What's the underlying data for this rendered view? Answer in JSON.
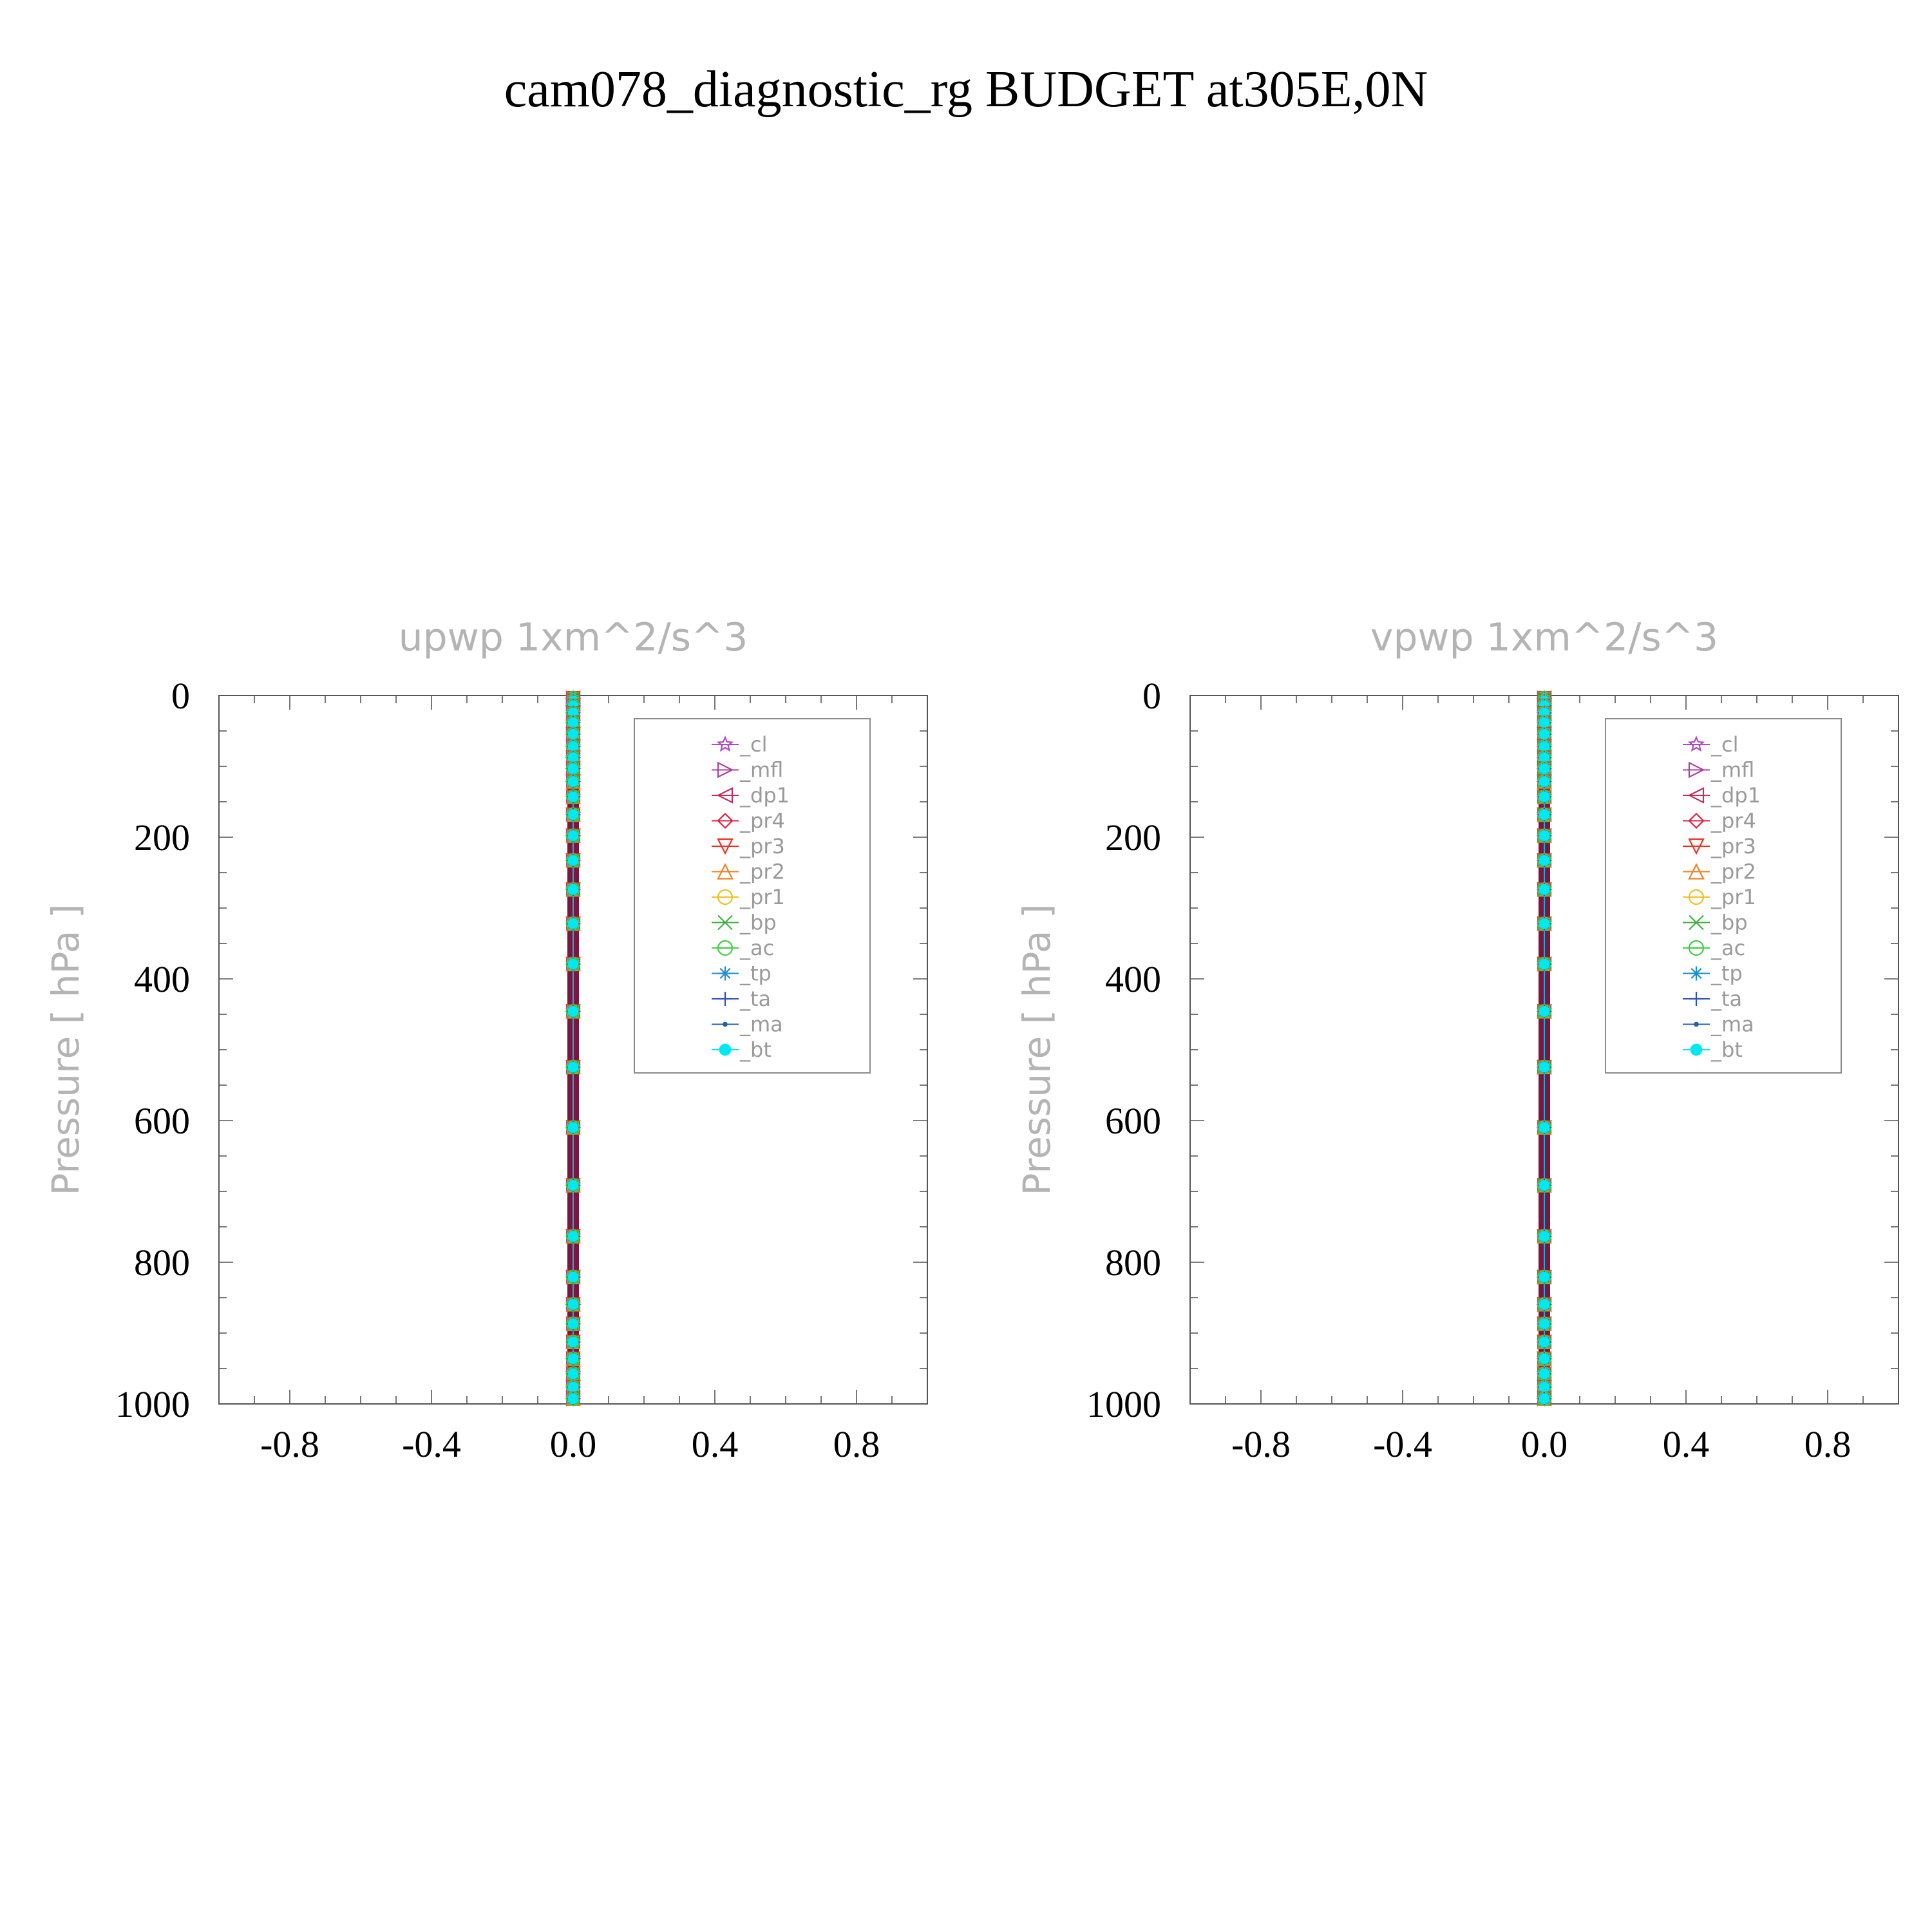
{
  "title": "cam078_diagnostic_rg  BUDGET at305E,0N",
  "chart_data": [
    {
      "type": "line",
      "title": "upwp    1xm^2/s^3",
      "xlabel": "",
      "ylabel": "Pressure  [ hPa ]",
      "xlim": [
        -1.0,
        1.0
      ],
      "ylim": [
        0,
        1000
      ],
      "y_inverted": true,
      "x_ticks": [
        "-0.8",
        "-0.4",
        "0.0",
        "0.4",
        "0.8"
      ],
      "x_tick_values": [
        -0.8,
        -0.4,
        0.0,
        0.4,
        0.8
      ],
      "y_ticks": [
        "0",
        "200",
        "400",
        "600",
        "800",
        "1000"
      ],
      "y_tick_values": [
        0,
        200,
        400,
        600,
        800,
        1000
      ],
      "levels": [
        3.6,
        7.6,
        14.4,
        24.6,
        38.3,
        54.6,
        72.0,
        87.8,
        103.3,
        121.5,
        142.9,
        168.2,
        197.9,
        232.8,
        273.9,
        322.2,
        379.1,
        445.9,
        524.6,
        609.8,
        691.4,
        763.4,
        820.9,
        859.5,
        887.0,
        912.6,
        936.2,
        957.5,
        976.3,
        992.6
      ],
      "value": 0.0,
      "series": [
        {
          "name": "_cl",
          "color": "#b048c8",
          "marker": "star"
        },
        {
          "name": "_mfl",
          "color": "#b040a0",
          "marker": "tri-right"
        },
        {
          "name": "_dp1",
          "color": "#c03060",
          "marker": "tri-left"
        },
        {
          "name": "_pr4",
          "color": "#e02040",
          "marker": "diamond"
        },
        {
          "name": "_pr3",
          "color": "#f03020",
          "marker": "tri-down"
        },
        {
          "name": "_pr2",
          "color": "#f08020",
          "marker": "tri-up"
        },
        {
          "name": "_pr1",
          "color": "#f0c020",
          "marker": "circle"
        },
        {
          "name": "_bp",
          "color": "#40b040",
          "marker": "x"
        },
        {
          "name": "_ac",
          "color": "#40d040",
          "marker": "theta"
        },
        {
          "name": "_tp",
          "color": "#2090d0",
          "marker": "asterisk"
        },
        {
          "name": "_ta",
          "color": "#3050c0",
          "marker": "plus"
        },
        {
          "name": "_ma",
          "color": "#2060b0",
          "marker": "dot"
        },
        {
          "name": "_bt",
          "color": "#00e8f0",
          "marker": "filled-circle"
        }
      ],
      "legend": "top-right"
    },
    {
      "type": "line",
      "title": "vpwp    1xm^2/s^3",
      "xlabel": "",
      "ylabel": "Pressure  [ hPa ]",
      "xlim": [
        -1.0,
        1.0
      ],
      "ylim": [
        0,
        1000
      ],
      "y_inverted": true,
      "x_ticks": [
        "-0.8",
        "-0.4",
        "0.0",
        "0.4",
        "0.8"
      ],
      "x_tick_values": [
        -0.8,
        -0.4,
        0.0,
        0.4,
        0.8
      ],
      "y_ticks": [
        "0",
        "200",
        "400",
        "600",
        "800",
        "1000"
      ],
      "y_tick_values": [
        0,
        200,
        400,
        600,
        800,
        1000
      ],
      "levels": [
        3.6,
        7.6,
        14.4,
        24.6,
        38.3,
        54.6,
        72.0,
        87.8,
        103.3,
        121.5,
        142.9,
        168.2,
        197.9,
        232.8,
        273.9,
        322.2,
        379.1,
        445.9,
        524.6,
        609.8,
        691.4,
        763.4,
        820.9,
        859.5,
        887.0,
        912.6,
        936.2,
        957.5,
        976.3,
        992.6
      ],
      "value": 0.0,
      "series": [
        {
          "name": "_cl",
          "color": "#b048c8",
          "marker": "star"
        },
        {
          "name": "_mfl",
          "color": "#b040a0",
          "marker": "tri-right"
        },
        {
          "name": "_dp1",
          "color": "#c03060",
          "marker": "tri-left"
        },
        {
          "name": "_pr4",
          "color": "#e02040",
          "marker": "diamond"
        },
        {
          "name": "_pr3",
          "color": "#f03020",
          "marker": "tri-down"
        },
        {
          "name": "_pr2",
          "color": "#f08020",
          "marker": "tri-up"
        },
        {
          "name": "_pr1",
          "color": "#f0c020",
          "marker": "circle"
        },
        {
          "name": "_bp",
          "color": "#40b040",
          "marker": "x"
        },
        {
          "name": "_ac",
          "color": "#40d040",
          "marker": "theta"
        },
        {
          "name": "_tp",
          "color": "#2090d0",
          "marker": "asterisk"
        },
        {
          "name": "_ta",
          "color": "#3050c0",
          "marker": "plus"
        },
        {
          "name": "_ma",
          "color": "#2060b0",
          "marker": "dot"
        },
        {
          "name": "_bt",
          "color": "#00e8f0",
          "marker": "filled-circle"
        }
      ],
      "legend": "top-right"
    }
  ]
}
